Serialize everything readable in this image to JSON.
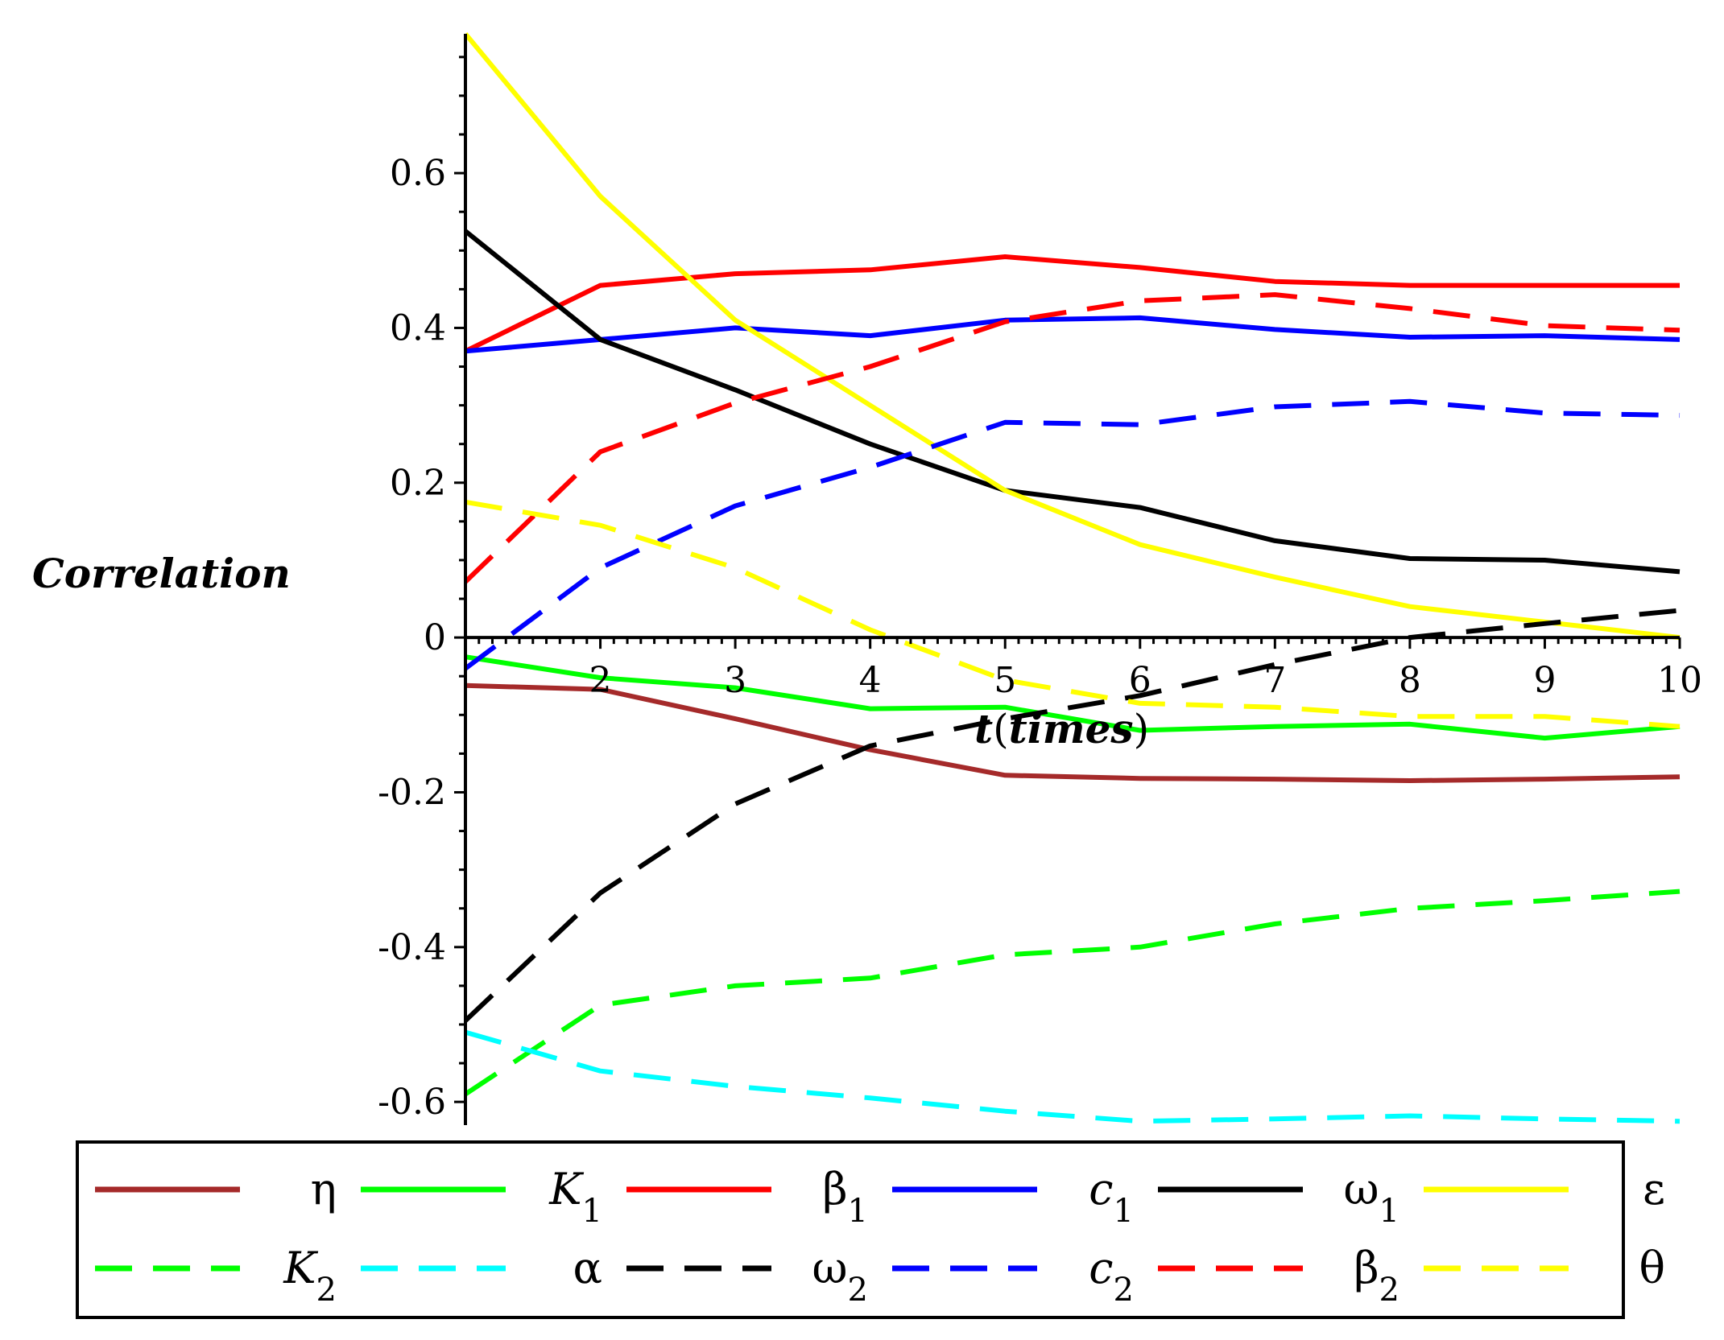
{
  "chart_data": {
    "type": "line",
    "title": "",
    "xlabel": "t(times)",
    "xlabel_parts": {
      "var": "t",
      "open": "(",
      "word": "times",
      "close": ")"
    },
    "ylabel": "Correlation",
    "xlim": [
      1,
      10
    ],
    "ylim": [
      -0.63,
      0.78
    ],
    "grid": false,
    "legend_placement": "bottom",
    "x": [
      1,
      2,
      3,
      4,
      5,
      6,
      7,
      8,
      9,
      10
    ],
    "xticks": [
      {
        "value": 2,
        "label": "2"
      },
      {
        "value": 3,
        "label": "3"
      },
      {
        "value": 4,
        "label": "4"
      },
      {
        "value": 5,
        "label": "5"
      },
      {
        "value": 6,
        "label": "6"
      },
      {
        "value": 7,
        "label": "7"
      },
      {
        "value": 8,
        "label": "8"
      },
      {
        "value": 9,
        "label": "9"
      },
      {
        "value": 10,
        "label": "10"
      }
    ],
    "yticks": [
      {
        "value": 0.6,
        "label": "0.6"
      },
      {
        "value": 0.4,
        "label": "0.4"
      },
      {
        "value": 0.2,
        "label": "0.2"
      },
      {
        "value": 0,
        "label": "0"
      },
      {
        "value": -0.2,
        "label": "-0.2"
      },
      {
        "value": -0.4,
        "label": "-0.4"
      },
      {
        "value": -0.6,
        "label": "-0.6"
      }
    ],
    "series": [
      {
        "name": "η",
        "legend_main": "η",
        "legend_sub": "",
        "italic": false,
        "color": "#a52a2a",
        "dashed": false,
        "values": [
          -0.062,
          -0.067,
          -0.105,
          -0.145,
          -0.178,
          -0.182,
          -0.183,
          -0.185,
          -0.183,
          -0.18
        ]
      },
      {
        "name": "K1",
        "legend_main": "K",
        "legend_sub": "1",
        "italic": true,
        "color": "#00ff00",
        "dashed": false,
        "values": [
          -0.025,
          -0.052,
          -0.065,
          -0.092,
          -0.09,
          -0.12,
          -0.115,
          -0.112,
          -0.13,
          -0.115
        ]
      },
      {
        "name": "β1",
        "legend_main": "β",
        "legend_sub": "1",
        "italic": false,
        "color": "#ff0000",
        "dashed": false,
        "values": [
          0.37,
          0.455,
          0.47,
          0.475,
          0.492,
          0.478,
          0.46,
          0.455,
          0.455,
          0.455
        ]
      },
      {
        "name": "c1",
        "legend_main": "c",
        "legend_sub": "1",
        "italic": true,
        "color": "#0000ff",
        "dashed": false,
        "values": [
          0.37,
          0.385,
          0.4,
          0.39,
          0.41,
          0.413,
          0.398,
          0.388,
          0.39,
          0.385
        ]
      },
      {
        "name": "ω1",
        "legend_main": "ω",
        "legend_sub": "1",
        "italic": false,
        "color": "#000000",
        "dashed": false,
        "values": [
          0.525,
          0.385,
          0.32,
          0.25,
          0.19,
          0.168,
          0.125,
          0.102,
          0.1,
          0.085
        ]
      },
      {
        "name": "ε",
        "legend_main": "ε",
        "legend_sub": "",
        "italic": false,
        "color": "#ffff00",
        "dashed": false,
        "values": [
          0.78,
          0.57,
          0.41,
          0.3,
          0.19,
          0.12,
          0.078,
          0.04,
          0.02,
          0.0
        ]
      },
      {
        "name": "K2",
        "legend_main": "K",
        "legend_sub": "2",
        "italic": true,
        "color": "#00ff00",
        "dashed": true,
        "values": [
          -0.59,
          -0.475,
          -0.45,
          -0.44,
          -0.41,
          -0.4,
          -0.37,
          -0.35,
          -0.34,
          -0.328
        ]
      },
      {
        "name": "α",
        "legend_main": "α",
        "legend_sub": "",
        "italic": false,
        "color": "#00ffff",
        "dashed": true,
        "values": [
          -0.51,
          -0.56,
          -0.58,
          -0.595,
          -0.612,
          -0.625,
          -0.622,
          -0.618,
          -0.622,
          -0.625
        ]
      },
      {
        "name": "ω2",
        "legend_main": "ω",
        "legend_sub": "2",
        "italic": false,
        "color": "#000000",
        "dashed": true,
        "values": [
          -0.495,
          -0.33,
          -0.215,
          -0.14,
          -0.105,
          -0.075,
          -0.035,
          0.0,
          0.018,
          0.035
        ]
      },
      {
        "name": "c2",
        "legend_main": "c",
        "legend_sub": "2",
        "italic": true,
        "color": "#0000ff",
        "dashed": true,
        "values": [
          -0.04,
          0.09,
          0.17,
          0.22,
          0.278,
          0.275,
          0.298,
          0.305,
          0.29,
          0.287
        ]
      },
      {
        "name": "β2",
        "legend_main": "β",
        "legend_sub": "2",
        "italic": false,
        "color": "#ff0000",
        "dashed": true,
        "values": [
          0.072,
          0.24,
          0.303,
          0.35,
          0.408,
          0.435,
          0.443,
          0.425,
          0.403,
          0.397
        ]
      },
      {
        "name": "θ",
        "legend_main": "θ",
        "legend_sub": "",
        "italic": false,
        "color": "#ffff00",
        "dashed": true,
        "values": [
          0.175,
          0.145,
          0.09,
          0.01,
          -0.055,
          -0.085,
          -0.09,
          -0.102,
          -0.102,
          -0.115
        ]
      }
    ]
  }
}
